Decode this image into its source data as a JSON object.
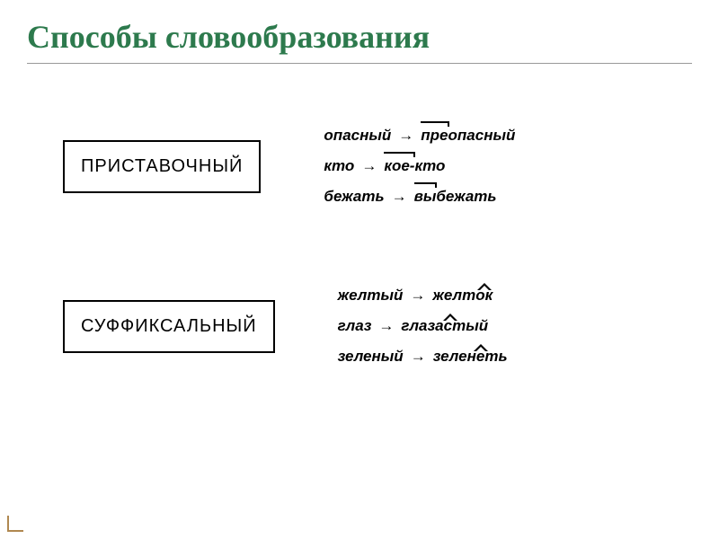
{
  "slide": {
    "title": "Способы  словообразования",
    "title_color": "#2d7a4d",
    "title_fontsize": 36,
    "background": "#ffffff",
    "arrow_glyph": "→",
    "sections": [
      {
        "label": "ПРИСТАВОЧНЫЙ",
        "examples": [
          {
            "source": "опасный",
            "result_before": "",
            "morph": "пре",
            "result_after": "опасный",
            "morph_type": "prefix"
          },
          {
            "source": "кто",
            "result_before": "",
            "morph": "кое-",
            "result_after": "кто",
            "morph_type": "prefix"
          },
          {
            "source": "бежать",
            "result_before": "",
            "morph": "вы",
            "result_after": "бежать",
            "morph_type": "prefix"
          }
        ]
      },
      {
        "label": "СУФФИКСАЛЬНЫЙ",
        "examples": [
          {
            "source": "желтый",
            "result_before": "желт",
            "morph": "ок",
            "result_after": "",
            "morph_type": "suffix"
          },
          {
            "source": "глаз",
            "result_before": "глаз",
            "morph": "аст",
            "result_after": "ый",
            "morph_type": "suffix"
          },
          {
            "source": "зеленый",
            "result_before": "зелен",
            "morph": "е",
            "result_after": "ть",
            "morph_type": "suffix"
          }
        ]
      }
    ]
  }
}
